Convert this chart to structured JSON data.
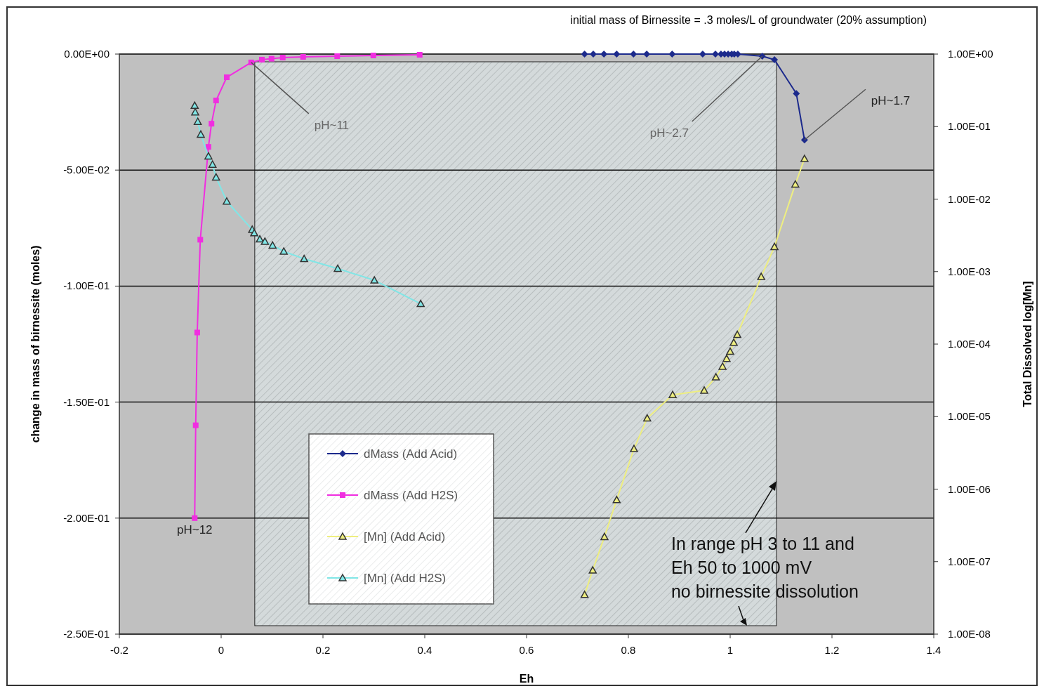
{
  "chart_data": {
    "type": "line",
    "title": "initial mass of Birnessite = .3 moles/L of groundwater (20% assumption)",
    "xlabel": "Eh",
    "ylabel": "change in mass of birnessite (moles)",
    "y2label": "Total Dissolved log[Mn]",
    "xlim": [
      -0.2,
      1.4
    ],
    "xticks": [
      -0.2,
      0,
      0.2,
      0.4,
      0.6,
      0.8,
      1,
      1.2,
      1.4
    ],
    "ylim": [
      -0.25,
      0
    ],
    "yticks": [
      {
        "value": -0.25,
        "label": "-2.50E-01"
      },
      {
        "value": -0.2,
        "label": "-2.00E-01"
      },
      {
        "value": -0.15,
        "label": "-1.50E-01"
      },
      {
        "value": -0.1,
        "label": "-1.00E-01"
      },
      {
        "value": -0.05,
        "label": "-5.00E-02"
      },
      {
        "value": 0,
        "label": "0.00E+00"
      }
    ],
    "y2lim": [
      1e-08,
      1
    ],
    "y2ticks": [
      {
        "value": 1e-08,
        "label": "1.00E-08"
      },
      {
        "value": 1e-07,
        "label": "1.00E-07"
      },
      {
        "value": 1e-06,
        "label": "1.00E-06"
      },
      {
        "value": 1e-05,
        "label": "1.00E-05"
      },
      {
        "value": 0.0001,
        "label": "1.00E-04"
      },
      {
        "value": 0.001,
        "label": "1.00E-03"
      },
      {
        "value": 0.01,
        "label": "1.00E-02"
      },
      {
        "value": 0.1,
        "label": "1.00E-01"
      },
      {
        "value": 1,
        "label": "1.00E+00"
      }
    ],
    "log": "y2",
    "grid": "y",
    "legend": "bottom left",
    "line_style": "solid",
    "bands": [
      {
        "axis": "x",
        "from": 0.066,
        "to": 1.091,
        "color": "#d4dadb"
      }
    ],
    "series": [
      {
        "name": "dMass (Add Acid)",
        "color": "#1c2a8c",
        "marker": "diamond",
        "x": [
          0.714,
          0.731,
          0.752,
          0.777,
          0.81,
          0.836,
          0.886,
          0.946,
          0.971,
          0.982,
          0.989,
          0.996,
          1.003,
          1.008,
          1.015,
          1.063,
          1.087,
          1.13,
          1.146
        ],
        "values": [
          0,
          0,
          0,
          0,
          0,
          0,
          0,
          0,
          0,
          0,
          0,
          0,
          0,
          0,
          0,
          -0.0009,
          -0.0024,
          -0.017,
          -0.037
        ]
      },
      {
        "name": "dMass (Add H2S)",
        "color": "#f02ee0",
        "marker": "square",
        "x": [
          -0.052,
          -0.05,
          -0.047,
          -0.041,
          -0.025,
          -0.019,
          -0.01,
          0.011,
          0.059,
          0.08,
          0.099,
          0.121,
          0.161,
          0.228,
          0.299,
          0.39
        ],
        "values": [
          -0.2,
          -0.16,
          -0.12,
          -0.08,
          -0.04,
          -0.03,
          -0.02,
          -0.01,
          -0.0036,
          -0.0024,
          -0.002,
          -0.0015,
          -0.0012,
          -0.0009,
          -0.0006,
          -0.0003
        ]
      },
      {
        "name": "[Mn] (Add Acid)",
        "color": "#eeee80",
        "marker": "triangle",
        "axis": "y2",
        "x": [
          0.714,
          0.73,
          0.753,
          0.777,
          0.811,
          0.837,
          0.887,
          0.949,
          0.972,
          0.985,
          0.993,
          1.0,
          1.007,
          1.014,
          1.061,
          1.087,
          1.128,
          1.146
        ],
        "values": [
          3.5e-08,
          7.6e-08,
          2.2e-07,
          7.1e-07,
          3.6e-06,
          9.5e-06,
          2e-05,
          2.3e-05,
          3.5e-05,
          4.9e-05,
          6.3e-05,
          7.9e-05,
          0.000105,
          0.000135,
          0.00085,
          0.0022,
          0.016,
          0.036
        ]
      },
      {
        "name": "[Mn] (Add H2S)",
        "color": "#80e6e6",
        "marker": "triangle",
        "axis": "y2",
        "x": [
          -0.052,
          -0.051,
          -0.046,
          -0.04,
          -0.025,
          -0.017,
          -0.01,
          0.011,
          0.061,
          0.065,
          0.076,
          0.086,
          0.101,
          0.123,
          0.163,
          0.229,
          0.301,
          0.392
        ],
        "values": [
          0.195,
          0.158,
          0.117,
          0.078,
          0.039,
          0.03,
          0.02,
          0.0093,
          0.0038,
          0.0034,
          0.0028,
          0.0026,
          0.0023,
          0.0019,
          0.0015,
          0.0011,
          0.00076,
          0.00036
        ]
      }
    ],
    "annotations": [
      {
        "text": "pH~11",
        "x": 0.059,
        "y": -0.0036
      },
      {
        "text": "pH~2.7",
        "x": 1.063,
        "y": -0.0009
      },
      {
        "text": "pH~1.7",
        "x": 1.146,
        "y": -0.037
      },
      {
        "text": "pH~12",
        "x": -0.052,
        "y": -0.2
      },
      {
        "text": "In range pH 3 to 11 and\nEh 50 to 1000 mV\nno birnessite dissolution",
        "x": 1.091,
        "y": -0.184
      }
    ]
  }
}
